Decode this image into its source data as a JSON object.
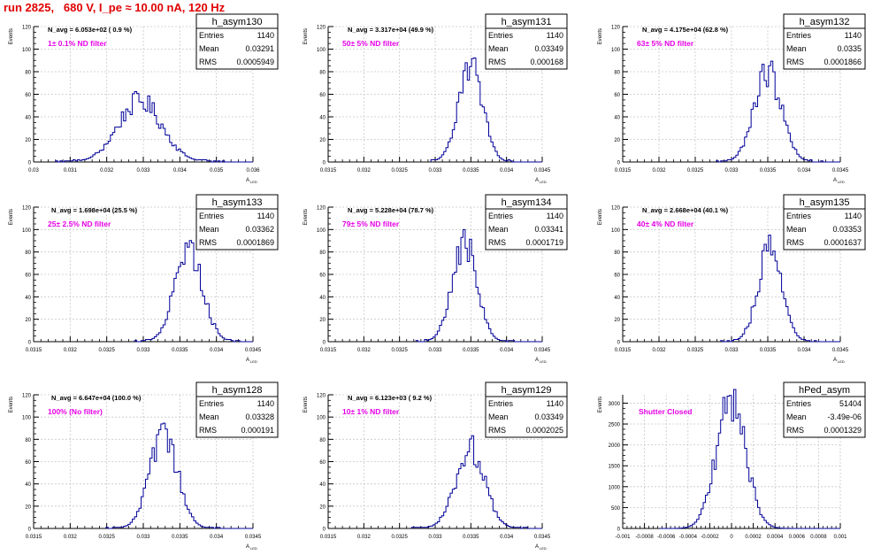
{
  "page": {
    "title": "run 2825,   680 V, I_pe ≈ 10.00 nA, 120 Hz"
  },
  "colors": {
    "title": "#e00000",
    "annotation": "#e600e6",
    "hist_line": "#000099",
    "grid": "#c8c8c8",
    "axis": "#000000"
  },
  "chart_data": [
    {
      "type": "histogram",
      "name": "h_asym130",
      "navg": "N_avg = 6.053e+02 ( 0.9 %)",
      "annotation": "1± 0.1% ND filter",
      "stats": {
        "entries": "1140",
        "mean": "0.03291",
        "rms": "0.0005949"
      },
      "ylabel": "Events",
      "xlabel": "A_LED",
      "xlim": [
        0.03,
        0.036
      ],
      "ylim": [
        0,
        120
      ],
      "xticks": [
        "0.03",
        "0.031",
        "0.032",
        "0.033",
        "0.034",
        "0.035",
        "0.036"
      ],
      "yticks": [
        0,
        20,
        40,
        60,
        80,
        100,
        120
      ],
      "peak": {
        "mean": 0.03291,
        "sigma": 0.000595,
        "max": 54
      },
      "grid": true
    },
    {
      "type": "histogram",
      "name": "h_asym131",
      "navg": "N_avg = 3.317e+04 (49.9 %)",
      "annotation": "50± 5% ND filter",
      "stats": {
        "entries": "1140",
        "mean": "0.03349",
        "rms": "0.000168"
      },
      "ylabel": "Events",
      "xlabel": "A_LED",
      "xlim": [
        0.0315,
        0.0345
      ],
      "ylim": [
        0,
        120
      ],
      "xticks": [
        "0.0315",
        "0.032",
        "0.0325",
        "0.033",
        "0.0335",
        "0.034",
        "0.0345"
      ],
      "yticks": [
        0,
        20,
        40,
        60,
        80,
        100,
        120
      ],
      "peak": {
        "mean": 0.03349,
        "sigma": 0.000168,
        "max": 88
      },
      "grid": true
    },
    {
      "type": "histogram",
      "name": "h_asym132",
      "navg": "N_avg = 4.175e+04 (62.8 %)",
      "annotation": "63± 5% ND filter",
      "stats": {
        "entries": "1140",
        "mean": "0.0335",
        "rms": "0.0001866"
      },
      "ylabel": "Events",
      "xlabel": "A_LED",
      "xlim": [
        0.0315,
        0.0345
      ],
      "ylim": [
        0,
        120
      ],
      "xticks": [
        "0.0315",
        "0.032",
        "0.0325",
        "0.033",
        "0.0335",
        "0.034",
        "0.0345"
      ],
      "yticks": [
        0,
        20,
        40,
        60,
        80,
        100,
        120
      ],
      "peak": {
        "mean": 0.0335,
        "sigma": 0.000187,
        "max": 80
      },
      "grid": true
    },
    {
      "type": "histogram",
      "name": "h_asym133",
      "navg": "N_avg = 1.698e+04 (25.5 %)",
      "annotation": "25± 2.5% ND filter",
      "stats": {
        "entries": "1140",
        "mean": "0.03362",
        "rms": "0.0001869"
      },
      "ylabel": "Events",
      "xlabel": "A_LED",
      "xlim": [
        0.0315,
        0.0345
      ],
      "ylim": [
        0,
        120
      ],
      "xticks": [
        "0.0315",
        "0.032",
        "0.0325",
        "0.033",
        "0.0335",
        "0.034",
        "0.0345"
      ],
      "yticks": [
        0,
        20,
        40,
        60,
        80,
        100,
        120
      ],
      "peak": {
        "mean": 0.03362,
        "sigma": 0.000187,
        "max": 84
      },
      "grid": true
    },
    {
      "type": "histogram",
      "name": "h_asym134",
      "navg": "N_avg = 5.228e+04 (78.7 %)",
      "annotation": "79± 5% ND filter",
      "stats": {
        "entries": "1140",
        "mean": "0.03341",
        "rms": "0.0001719"
      },
      "ylabel": "Events",
      "xlabel": "A_LED",
      "xlim": [
        0.0315,
        0.0345
      ],
      "ylim": [
        0,
        120
      ],
      "xticks": [
        "0.0315",
        "0.032",
        "0.0325",
        "0.033",
        "0.0335",
        "0.034",
        "0.0345"
      ],
      "yticks": [
        0,
        20,
        40,
        60,
        80,
        100,
        120
      ],
      "peak": {
        "mean": 0.03341,
        "sigma": 0.000172,
        "max": 88
      },
      "grid": true
    },
    {
      "type": "histogram",
      "name": "h_asym135",
      "navg": "N_avg = 2.668e+04 (40.1 %)",
      "annotation": "40± 4% ND filter",
      "stats": {
        "entries": "1140",
        "mean": "0.03353",
        "rms": "0.0001637"
      },
      "ylabel": "Events",
      "xlabel": "A_LED",
      "xlim": [
        0.0315,
        0.0345
      ],
      "ylim": [
        0,
        120
      ],
      "xticks": [
        "0.0315",
        "0.032",
        "0.0325",
        "0.033",
        "0.0335",
        "0.034",
        "0.0345"
      ],
      "yticks": [
        0,
        20,
        40,
        60,
        80,
        100,
        120
      ],
      "peak": {
        "mean": 0.03353,
        "sigma": 0.000164,
        "max": 82
      },
      "grid": true
    },
    {
      "type": "histogram",
      "name": "h_asym128",
      "navg": "N_avg = 6.647e+04 (100.0 %)",
      "annotation": "100% (No filter)",
      "stats": {
        "entries": "1140",
        "mean": "0.03328",
        "rms": "0.000191"
      },
      "ylabel": "Events",
      "xlabel": "A_LED",
      "xlim": [
        0.0315,
        0.0345
      ],
      "ylim": [
        0,
        120
      ],
      "xticks": [
        "0.0315",
        "0.032",
        "0.0325",
        "0.033",
        "0.0335",
        "0.034",
        "0.0345"
      ],
      "yticks": [
        0,
        20,
        40,
        60,
        80,
        100,
        120
      ],
      "peak": {
        "mean": 0.03328,
        "sigma": 0.000191,
        "max": 82
      },
      "grid": true
    },
    {
      "type": "histogram",
      "name": "h_asym129",
      "navg": "N_avg = 6.123e+03 ( 9.2 %)",
      "annotation": "10± 1% ND filter",
      "stats": {
        "entries": "1140",
        "mean": "0.03349",
        "rms": "0.0002025"
      },
      "ylabel": "Events",
      "xlabel": "A_LED",
      "xlim": [
        0.0315,
        0.0345
      ],
      "ylim": [
        0,
        120
      ],
      "xticks": [
        "0.0315",
        "0.032",
        "0.0325",
        "0.033",
        "0.0335",
        "0.034",
        "0.0345"
      ],
      "yticks": [
        0,
        20,
        40,
        60,
        80,
        100,
        120
      ],
      "peak": {
        "mean": 0.03349,
        "sigma": 0.000203,
        "max": 72
      },
      "grid": true
    },
    {
      "type": "histogram",
      "name": "hPed_asym",
      "navg": "",
      "annotation": "Shutter Closed",
      "stats": {
        "entries": "51404",
        "mean": "-3.49e-06",
        "rms": "0.0001329"
      },
      "ylabel": "Events",
      "xlabel": "",
      "xlim": [
        -0.001,
        0.001
      ],
      "ylim": [
        0,
        3200
      ],
      "xticks": [
        "-0.001",
        "-0.0008",
        "-0.0006",
        "-0.0004",
        "-0.0002",
        "0",
        "0.0002",
        "0.0004",
        "0.0006",
        "0.0008",
        "0.001"
      ],
      "yticks": [
        0,
        500,
        1000,
        1500,
        2000,
        2500,
        3000
      ],
      "peak": {
        "mean": -3.49e-06,
        "sigma": 0.000133,
        "max": 3080
      },
      "grid": true
    }
  ]
}
